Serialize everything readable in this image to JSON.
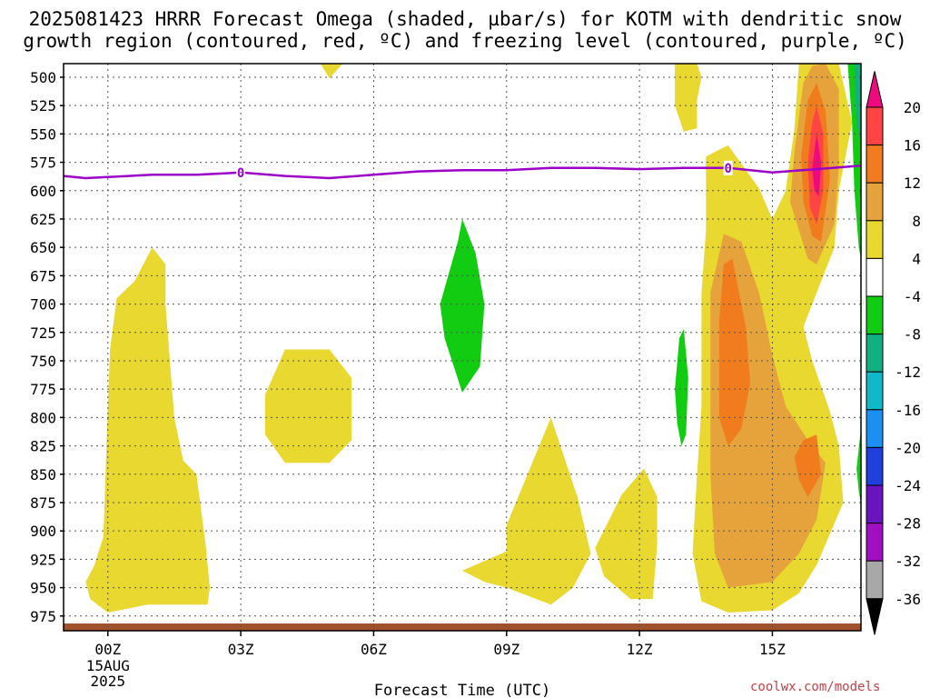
{
  "header": {
    "line1": "2025081423 HRRR Forecast Omega (shaded, µbar/s) for KOTM with dendritic snow",
    "line2": "growth region (contoured, red, ºC) and freezing level (contoured, purple, ºC)"
  },
  "credit": "coolwx.com/models",
  "chart_data": {
    "type": "contour",
    "xlabel": "Forecast Time (UTC)",
    "x_ticks": [
      {
        "hour": 0,
        "label": "00Z",
        "sublabels": [
          "15AUG",
          "2025"
        ]
      },
      {
        "hour": 3,
        "label": "03Z"
      },
      {
        "hour": 6,
        "label": "06Z"
      },
      {
        "hour": 9,
        "label": "09Z"
      },
      {
        "hour": 12,
        "label": "12Z"
      },
      {
        "hour": 15,
        "label": "15Z"
      }
    ],
    "xlim": [
      -1.0,
      17.0
    ],
    "ylim": [
      988,
      488
    ],
    "y_ticks": [
      "500",
      "525",
      "550",
      "575",
      "600",
      "625",
      "650",
      "675",
      "700",
      "725",
      "750",
      "775",
      "800",
      "825",
      "850",
      "875",
      "900",
      "925",
      "950",
      "975"
    ],
    "colorbar": {
      "labels": [
        "20",
        "16",
        "12",
        "8",
        "4",
        "-4",
        "-8",
        "-12",
        "-16",
        "-20",
        "-24",
        "-28",
        "-32",
        "-36"
      ],
      "colors": [
        "#ee0a7e",
        "#ff4444",
        "#f07c1e",
        "#e6a33c",
        "#e8d830",
        "#ffffff",
        "#11cc11",
        "#11b080",
        "#11b8c8",
        "#1a90f0",
        "#2040dd",
        "#6a14c0",
        "#a010c0",
        "#a8a8a8",
        "#000000"
      ]
    },
    "freezing_level": {
      "color": "#9a00c8",
      "label": "0",
      "points": [
        [
          -1.0,
          587
        ],
        [
          -0.5,
          589
        ],
        [
          0.0,
          588
        ],
        [
          1.0,
          586
        ],
        [
          2.0,
          586
        ],
        [
          3.0,
          584
        ],
        [
          4.0,
          587
        ],
        [
          5.0,
          589
        ],
        [
          6.0,
          586
        ],
        [
          7.0,
          583
        ],
        [
          8.0,
          582
        ],
        [
          9.0,
          582
        ],
        [
          10.0,
          580
        ],
        [
          11.0,
          580
        ],
        [
          12.0,
          581
        ],
        [
          13.0,
          580
        ],
        [
          14.0,
          580
        ],
        [
          15.0,
          584
        ],
        [
          16.0,
          581
        ],
        [
          17.0,
          578
        ]
      ],
      "label_hours": [
        3.0,
        14.0
      ]
    },
    "ground_color": "#a0522d",
    "regions": [
      {
        "color": "#e8d830",
        "points": [
          [
            -0.5,
            945
          ],
          [
            -0.3,
            930
          ],
          [
            -0.1,
            905
          ],
          [
            0.0,
            790
          ],
          [
            0.05,
            740
          ],
          [
            0.2,
            695
          ],
          [
            0.6,
            680
          ],
          [
            1.0,
            650
          ],
          [
            1.3,
            665
          ],
          [
            1.3,
            700
          ],
          [
            1.5,
            800
          ],
          [
            1.7,
            838
          ],
          [
            2.0,
            850
          ],
          [
            2.2,
            910
          ],
          [
            2.3,
            950
          ],
          [
            2.25,
            965
          ],
          [
            0.9,
            965
          ],
          [
            0.0,
            972
          ],
          [
            -0.4,
            960
          ]
        ]
      },
      {
        "color": "#e8d830",
        "points": [
          [
            3.55,
            780
          ],
          [
            4.0,
            740
          ],
          [
            5.0,
            740
          ],
          [
            5.5,
            765
          ],
          [
            5.5,
            820
          ],
          [
            5.0,
            840
          ],
          [
            4.0,
            840
          ],
          [
            3.55,
            815
          ]
        ]
      },
      {
        "color": "#e8d830",
        "points": [
          [
            4.8,
            488
          ],
          [
            5.3,
            488
          ],
          [
            5.0,
            501
          ]
        ]
      },
      {
        "color": "#e8d830",
        "points": [
          [
            8.0,
            935
          ],
          [
            9.0,
            918
          ],
          [
            9.0,
            895
          ],
          [
            10.0,
            800
          ],
          [
            10.6,
            870
          ],
          [
            10.9,
            920
          ],
          [
            10.5,
            950
          ],
          [
            10.0,
            965
          ],
          [
            9.0,
            950
          ],
          [
            8.5,
            945
          ]
        ]
      },
      {
        "color": "#e8d830",
        "points": [
          [
            11.0,
            915
          ],
          [
            11.6,
            868
          ],
          [
            12.1,
            845
          ],
          [
            12.4,
            870
          ],
          [
            12.4,
            912
          ],
          [
            12.3,
            960
          ],
          [
            11.8,
            960
          ],
          [
            11.2,
            940
          ]
        ]
      },
      {
        "color": "#e8d830",
        "points": [
          [
            12.8,
            488
          ],
          [
            13.3,
            488
          ],
          [
            13.4,
            500
          ],
          [
            13.3,
            520
          ],
          [
            13.3,
            545
          ],
          [
            13.0,
            548
          ],
          [
            12.8,
            525
          ]
        ]
      },
      {
        "color": "#e8d830",
        "points": [
          [
            13.4,
            690
          ],
          [
            13.5,
            635
          ],
          [
            13.5,
            570
          ],
          [
            14.0,
            560
          ],
          [
            14.7,
            598
          ],
          [
            15.0,
            625
          ],
          [
            15.3,
            600
          ],
          [
            15.5,
            545
          ],
          [
            15.6,
            488
          ],
          [
            16.5,
            488
          ],
          [
            16.8,
            540
          ],
          [
            16.5,
            600
          ],
          [
            16.4,
            650
          ],
          [
            16.0,
            690
          ],
          [
            15.7,
            720
          ],
          [
            15.9,
            750
          ],
          [
            16.3,
            795
          ],
          [
            16.5,
            825
          ],
          [
            16.6,
            875
          ],
          [
            16.0,
            930
          ],
          [
            15.6,
            955
          ],
          [
            15.0,
            970
          ],
          [
            14.0,
            972
          ],
          [
            13.4,
            962
          ],
          [
            13.2,
            920
          ],
          [
            13.3,
            850
          ],
          [
            13.4,
            790
          ]
        ]
      },
      {
        "color": "#e6a33c",
        "points": [
          [
            13.6,
            690
          ],
          [
            13.9,
            638
          ],
          [
            14.3,
            645
          ],
          [
            14.7,
            690
          ],
          [
            15.0,
            745
          ],
          [
            15.3,
            790
          ],
          [
            15.8,
            820
          ],
          [
            16.2,
            840
          ],
          [
            16.0,
            890
          ],
          [
            15.6,
            920
          ],
          [
            15.0,
            945
          ],
          [
            14.0,
            950
          ],
          [
            13.7,
            920
          ],
          [
            13.6,
            850
          ],
          [
            13.6,
            780
          ]
        ]
      },
      {
        "color": "#e6a33c",
        "points": [
          [
            15.5,
            565
          ],
          [
            15.7,
            505
          ],
          [
            15.9,
            490
          ],
          [
            16.2,
            488
          ],
          [
            16.5,
            510
          ],
          [
            16.5,
            580
          ],
          [
            16.4,
            630
          ],
          [
            16.0,
            665
          ],
          [
            15.8,
            660
          ],
          [
            15.4,
            610
          ]
        ]
      },
      {
        "color": "#f07c1e",
        "points": [
          [
            13.8,
            715
          ],
          [
            13.9,
            665
          ],
          [
            14.1,
            660
          ],
          [
            14.4,
            720
          ],
          [
            14.5,
            770
          ],
          [
            14.3,
            810
          ],
          [
            14.0,
            825
          ],
          [
            13.8,
            800
          ]
        ]
      },
      {
        "color": "#f07c1e",
        "points": [
          [
            15.5,
            835
          ],
          [
            15.7,
            820
          ],
          [
            16.0,
            815
          ],
          [
            16.1,
            850
          ],
          [
            15.8,
            870
          ],
          [
            15.6,
            855
          ]
        ]
      },
      {
        "color": "#f07c1e",
        "points": [
          [
            15.65,
            570
          ],
          [
            15.8,
            520
          ],
          [
            16.0,
            505
          ],
          [
            16.2,
            530
          ],
          [
            16.3,
            590
          ],
          [
            16.1,
            645
          ],
          [
            15.9,
            640
          ],
          [
            15.7,
            610
          ]
        ]
      },
      {
        "color": "#ff4444",
        "points": [
          [
            15.8,
            575
          ],
          [
            15.9,
            540
          ],
          [
            16.0,
            525
          ],
          [
            16.15,
            550
          ],
          [
            16.15,
            600
          ],
          [
            16.0,
            630
          ],
          [
            15.85,
            615
          ]
        ]
      },
      {
        "color": "#ee0a7e",
        "points": [
          [
            15.9,
            580
          ],
          [
            16.0,
            550
          ],
          [
            16.1,
            575
          ],
          [
            16.05,
            605
          ],
          [
            15.95,
            600
          ]
        ]
      },
      {
        "color": "#11cc11",
        "points": [
          [
            7.5,
            700
          ],
          [
            7.9,
            645
          ],
          [
            8.0,
            625
          ],
          [
            8.3,
            655
          ],
          [
            8.5,
            700
          ],
          [
            8.4,
            755
          ],
          [
            8.0,
            778
          ],
          [
            7.6,
            730
          ]
        ]
      },
      {
        "color": "#11cc11",
        "points": [
          [
            12.8,
            775
          ],
          [
            12.9,
            730
          ],
          [
            13.0,
            722
          ],
          [
            13.1,
            765
          ],
          [
            13.05,
            815
          ],
          [
            12.95,
            825
          ],
          [
            12.85,
            805
          ]
        ]
      },
      {
        "color": "#11cc11",
        "points": [
          [
            16.7,
            488
          ],
          [
            17.0,
            488
          ],
          [
            17.0,
            660
          ],
          [
            16.95,
            650
          ],
          [
            16.85,
            600
          ],
          [
            16.8,
            540
          ]
        ]
      },
      {
        "color": "#11cc11",
        "points": [
          [
            16.9,
            845
          ],
          [
            17.0,
            810
          ],
          [
            17.0,
            875
          ],
          [
            16.95,
            865
          ]
        ]
      },
      {
        "color": "#11b080",
        "points": [
          [
            16.85,
            488
          ],
          [
            17.0,
            488
          ],
          [
            17.0,
            560
          ],
          [
            16.9,
            540
          ]
        ]
      }
    ]
  }
}
